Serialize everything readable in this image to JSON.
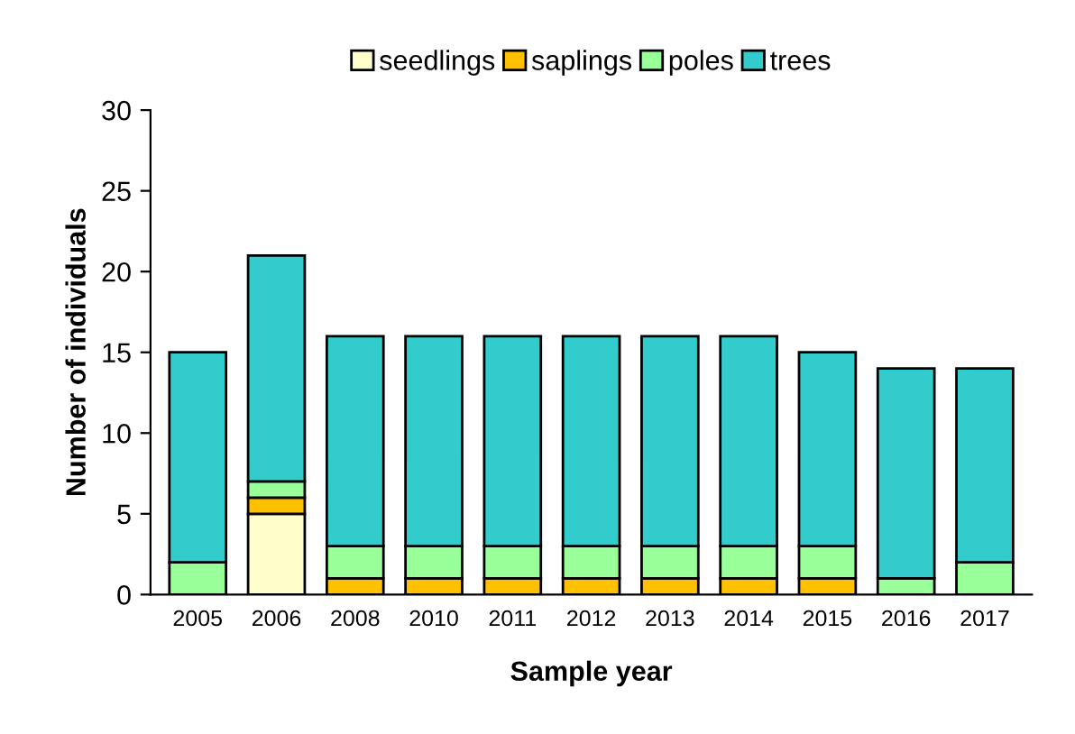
{
  "chart_data": {
    "type": "bar",
    "stacked": true,
    "xlabel": "Sample year",
    "ylabel": "Number of individuals",
    "categories": [
      "2005",
      "2006",
      "2008",
      "2010",
      "2011",
      "2012",
      "2013",
      "2014",
      "2015",
      "2016",
      "2017"
    ],
    "series": [
      {
        "name": "seedlings",
        "color": "#ffffcc",
        "values": [
          0,
          5,
          0,
          0,
          0,
          0,
          0,
          0,
          0,
          0,
          0
        ]
      },
      {
        "name": "saplings",
        "color": "#ffc000",
        "values": [
          0,
          1,
          1,
          1,
          1,
          1,
          1,
          1,
          1,
          0,
          0
        ]
      },
      {
        "name": "poles",
        "color": "#99ff99",
        "values": [
          2,
          1,
          2,
          2,
          2,
          2,
          2,
          2,
          2,
          1,
          2
        ]
      },
      {
        "name": "trees",
        "color": "#33cccc",
        "values": [
          13,
          14,
          13,
          13,
          13,
          13,
          13,
          13,
          12,
          13,
          12
        ]
      }
    ],
    "ylim": [
      0,
      30
    ],
    "yticks": [
      0,
      5,
      10,
      15,
      20,
      25,
      30
    ],
    "legend": "top",
    "grid": false
  }
}
